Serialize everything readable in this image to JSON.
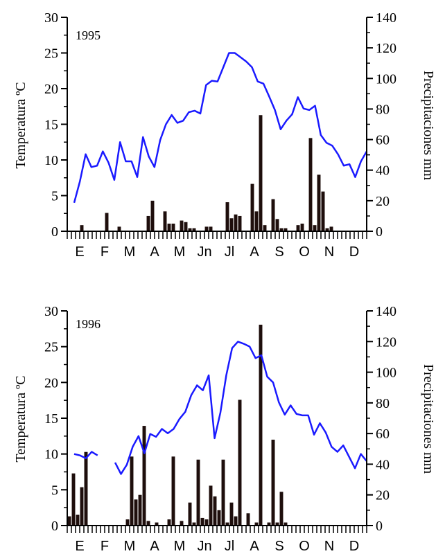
{
  "chart_data": [
    {
      "type": "bar+line",
      "year_label": "1995",
      "ylabel_left": "Temperatura ºC",
      "ylabel_right": "Precipitaciones mm",
      "ylim_left": [
        0,
        30
      ],
      "ylim_right": [
        0,
        140
      ],
      "yticks_left": [
        "0",
        "5",
        "10",
        "15",
        "20",
        "25",
        "30"
      ],
      "yticks_right": [
        "0",
        "20",
        "40",
        "60",
        "80",
        "100",
        "120",
        "140"
      ],
      "months": [
        "E",
        "F",
        "M",
        "A",
        "M",
        "Jn",
        "Jl",
        "A",
        "S",
        "O",
        "N",
        "D"
      ],
      "periods": 72,
      "temperature": [
        4,
        7,
        10.8,
        9,
        9.2,
        11.2,
        9.6,
        7.2,
        12.5,
        9.8,
        9.8,
        7.6,
        13.2,
        10.5,
        9,
        12.8,
        15,
        16.3,
        15.2,
        15.5,
        16.7,
        16.9,
        16.5,
        20.5,
        21.1,
        21,
        23,
        25,
        25,
        24.4,
        23.8,
        23,
        21,
        20.7,
        18.9,
        17,
        14.3,
        15.5,
        16.4,
        18.8,
        17.2,
        17,
        17.6,
        13.5,
        12.4,
        12,
        10.8,
        9.2,
        9.4,
        7.6,
        9.8,
        11.2
      ],
      "temperature_segments": [
        [
          0,
          52
        ]
      ],
      "precipitation": [
        0,
        4,
        0,
        0,
        0,
        0,
        0,
        12,
        0,
        0,
        3,
        0,
        0,
        0,
        0,
        0,
        0,
        10,
        20,
        0,
        0,
        13,
        5,
        5,
        0,
        7,
        6,
        2,
        2,
        0,
        0,
        3,
        3,
        0,
        0,
        0,
        19,
        8.5,
        11,
        10,
        0,
        0,
        31,
        13,
        76,
        4,
        0,
        21,
        8,
        2,
        2,
        0,
        0,
        4,
        5,
        0,
        61,
        4,
        37,
        26,
        2,
        3
      ],
      "precipitation_start": 2
    },
    {
      "type": "bar+line",
      "year_label": "1996",
      "ylabel_left": "Temperatura ºC",
      "ylabel_right": "Precipitaciones mm",
      "ylim_left": [
        0,
        30
      ],
      "ylim_right": [
        0,
        140
      ],
      "yticks_left": [
        "0",
        "5",
        "10",
        "15",
        "20",
        "25",
        "30"
      ],
      "yticks_right": [
        "0",
        "20",
        "40",
        "60",
        "80",
        "100",
        "120",
        "140"
      ],
      "months": [
        "E",
        "F",
        "M",
        "A",
        "M",
        "Jn",
        "Jl",
        "A",
        "S",
        "O",
        "N",
        "D"
      ],
      "periods": 72,
      "temperature": [
        10,
        9.8,
        9.4,
        10.3,
        9.8,
        null,
        null,
        8.8,
        7.2,
        8.5,
        11,
        12.5,
        10.1,
        12.8,
        12.4,
        13.5,
        12.9,
        13.5,
        14.9,
        15.9,
        18.2,
        19.6,
        18.9,
        21,
        12.2,
        15.8,
        21,
        24.8,
        25.7,
        25.4,
        25,
        23.4,
        23.8,
        20.8,
        20,
        17.2,
        15.5,
        16.8,
        15.6,
        15.4,
        15.4,
        12.7,
        14.3,
        13,
        11,
        10.3,
        11.2,
        9.6,
        8,
        10,
        9
      ],
      "temperature_segments": [
        [
          0,
          5
        ],
        [
          7,
          51
        ]
      ],
      "precipitation": [
        6,
        34,
        7,
        25,
        48,
        0,
        0,
        0,
        0,
        0,
        0,
        0,
        0,
        0,
        4,
        45,
        17,
        20,
        65,
        3,
        0,
        2,
        0,
        0,
        4,
        45,
        0,
        3,
        0,
        15,
        2,
        43,
        5,
        4,
        26,
        19,
        10,
        43,
        2,
        15,
        6,
        82,
        0,
        8,
        0,
        2,
        131,
        0,
        2,
        56,
        2,
        22,
        2
      ],
      "precipitation_start": 0
    }
  ]
}
